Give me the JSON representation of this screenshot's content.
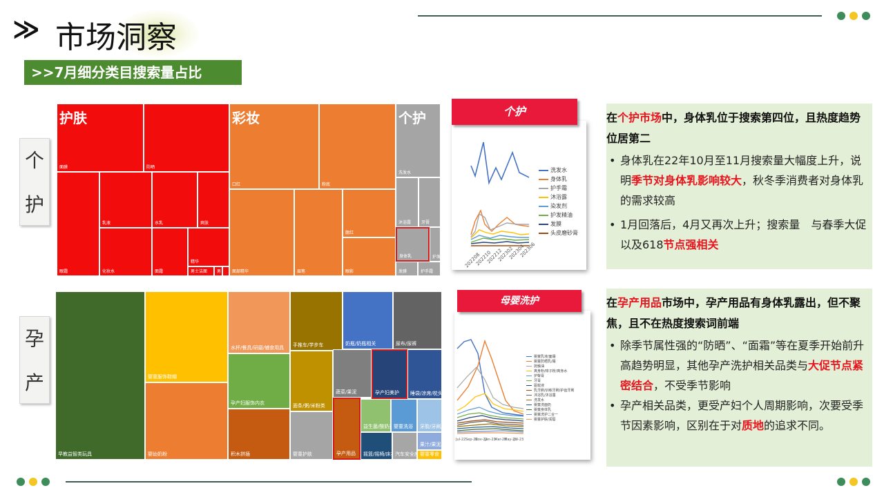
{
  "header": {
    "arrow": "≫",
    "title": "市场洞察",
    "subtitle": ">>7月细分类目搜索量占比"
  },
  "colors": {
    "green_dot": "#3d8c5a",
    "yellow_dot": "#f3c623",
    "accent_green": "#4d8b31",
    "banner_red": "#e8193a",
    "panel_bg": "#e3efd6"
  },
  "rows": [
    {
      "label_top": "个",
      "label_bottom": "护"
    },
    {
      "label_top": "孕",
      "label_bottom": "产"
    }
  ],
  "treemap_top": {
    "groups": [
      "护肤",
      "彩妆",
      "个护"
    ],
    "cells": [
      "面膜",
      "防晒",
      "乳液",
      "水乳",
      "面霜",
      "爽肤",
      "面部精华",
      "精华",
      "化妆水",
      "眼霜",
      "男士洁面",
      "男",
      "口红",
      "粉底",
      "眉笔",
      "眼影",
      "腮红",
      "洗发水",
      "沐浴露",
      "牙膏",
      "身体乳",
      "护发精油",
      "发膜",
      "护手霜"
    ]
  },
  "treemap_bottom": {
    "cells": [
      "早教益智类玩具",
      "婴童服饰鞋帽",
      "婴幼奶粉",
      "水杯/餐具/研磨/辅食用具",
      "孕产妇服饰内衣",
      "积木拼插",
      "婴童护肤",
      "面条/粥/米粉类",
      "孕产用品",
      "手推车/学步车",
      "奶瓶/奶瓶相关",
      "尿布/尿裤",
      "蔬菜/果泥",
      "孕产妇美护",
      "睡袋/凉席/枕头/床品",
      "益生菌/酸奶类",
      "牙胶/牙刷/牙膏",
      "婴童洗浴",
      "摇篮/摇椅/床护栏",
      "汽车安全座椅/安全背带",
      "果汁/果泥/果蔬",
      "婴童零食"
    ]
  },
  "chart1": {
    "banner": "个护",
    "x_labels": [
      "202208",
      "202210",
      "202212",
      "202302",
      "202304",
      "202306"
    ],
    "legend": [
      {
        "name": "洗发水",
        "color": "#4472c4"
      },
      {
        "name": "身体乳",
        "color": "#ed7d31"
      },
      {
        "name": "护手霜",
        "color": "#a5a5a5"
      },
      {
        "name": "沐浴露",
        "color": "#ffc000"
      },
      {
        "name": "染发剂",
        "color": "#5b9bd5"
      },
      {
        "name": "护发精油",
        "color": "#70ad47"
      },
      {
        "name": "发膜",
        "color": "#264478"
      },
      {
        "name": "头皮磨砂膏",
        "color": "#9e480e"
      }
    ]
  },
  "chart2": {
    "banner": "母婴洗护",
    "x_labels": [
      "Jul-22",
      "Sep-22",
      "Nov-22",
      "Jan-23",
      "Mar-23",
      "May-23",
      "Jul-23"
    ],
    "legend": [
      {
        "name": "婴童乳液/面霜",
        "color": "#4472c4"
      },
      {
        "name": "婴童防晒乳/霜",
        "color": "#ed7d31"
      },
      {
        "name": "抚触油",
        "color": "#a5a5a5"
      },
      {
        "name": "爽身粉/痱子粉/爽身水",
        "color": "#ffc000"
      },
      {
        "name": "护臀膏",
        "color": "#5b9bd5"
      },
      {
        "name": "牙膏",
        "color": "#70ad47"
      },
      {
        "name": "驱蚊液",
        "color": "#264478"
      },
      {
        "name": "乳牙刷/训练牙刷/护齿牙刷",
        "color": "#9e480e"
      },
      {
        "name": "沐浴乳/沐浴露",
        "color": "#636363"
      },
      {
        "name": "洗发水",
        "color": "#997300"
      },
      {
        "name": "婴童洗面奶",
        "color": "#255e91"
      },
      {
        "name": "婴童身体乳",
        "color": "#43682b"
      },
      {
        "name": "婴童洗护二合一",
        "color": "#698ed0"
      },
      {
        "name": "婴童护肤/润唇",
        "color": "#f1975a"
      }
    ]
  },
  "panel1": {
    "head_pre": "在",
    "head_red": "个护市场",
    "head_post": "中，身体乳位于搜索第四位，且热度趋势位居第二",
    "b1_pre": "身体乳在22年10月至11月搜索量大幅度上升，说明",
    "b1_red": "季节对身体乳影响较大",
    "b1_post": "，秋冬季消费者对身体乳的需求较高",
    "b2_pre": "1月回落后，4月又再次上升；搜索量　与春季大促以及618",
    "b2_red": "节点强相关"
  },
  "panel2": {
    "head_pre": "在",
    "head_red": "孕产用品",
    "head_post": "市场中，孕产用品有身体乳露出，但不聚焦，且不在热度搜索词前端",
    "b1_pre": "除季节属性强的“防晒”、“面霜”等在夏季开始前升高趋势明显，其他孕产洗护相关品类与",
    "b1_red": "大促节点紧密结合",
    "b1_post": "，不受季节影响",
    "b2_pre": "孕产相关品类，更受产妇个人周期影响，次要受季节因素影响，区别在于对",
    "b2_red": "质地",
    "b2_post": "的追求不同。"
  }
}
